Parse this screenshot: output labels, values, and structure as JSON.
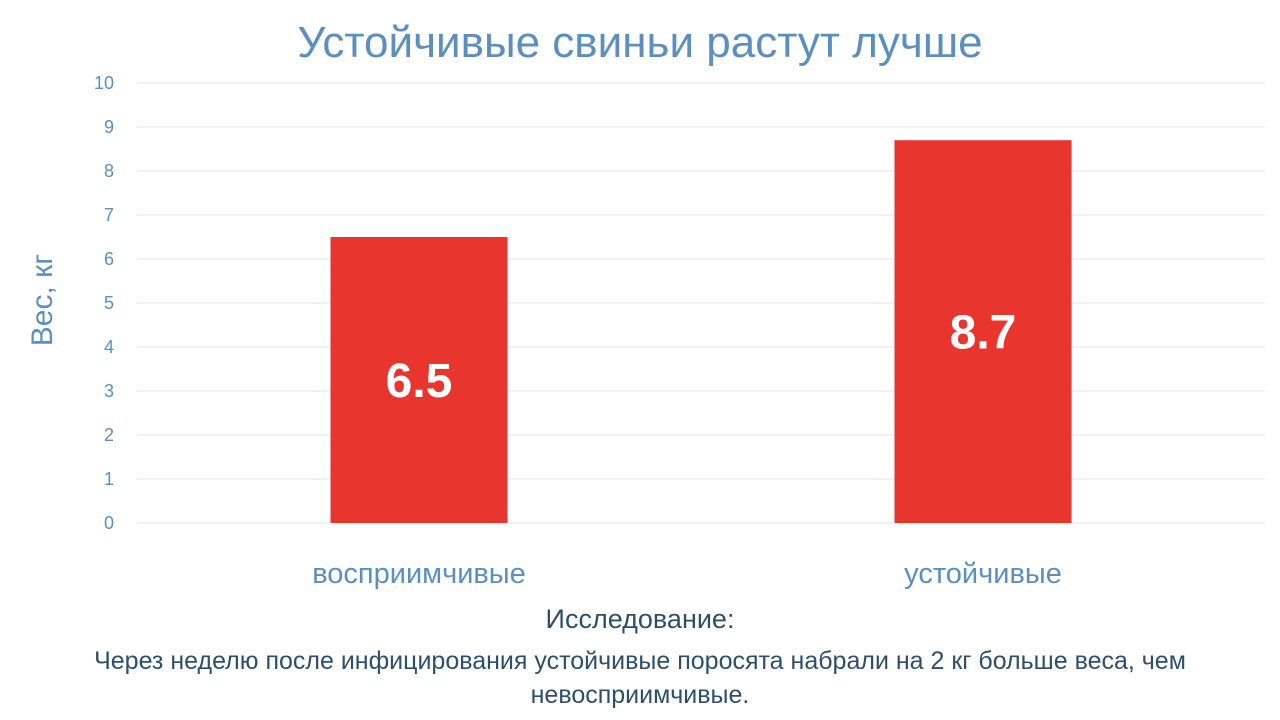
{
  "chart_data": {
    "type": "bar",
    "title": "Устойчивые свиньи растут лучше",
    "ylabel": "Вес, кг",
    "xlabel": "",
    "categories": [
      "восприимчивые",
      "устойчивые"
    ],
    "values": [
      6.5,
      8.7
    ],
    "data_labels": [
      "6.5",
      "8.7"
    ],
    "ylim": [
      0,
      10
    ],
    "yticks": [
      0,
      1,
      2,
      3,
      4,
      5,
      6,
      7,
      8,
      9,
      10
    ],
    "grid": true,
    "legend": "none",
    "bar_color": "#e8352e"
  },
  "note": {
    "heading": "Исследование:",
    "body": "Через неделю после инфицирования устойчивые поросята набрали на 2 кг больше веса, чем невосприимчивые."
  }
}
